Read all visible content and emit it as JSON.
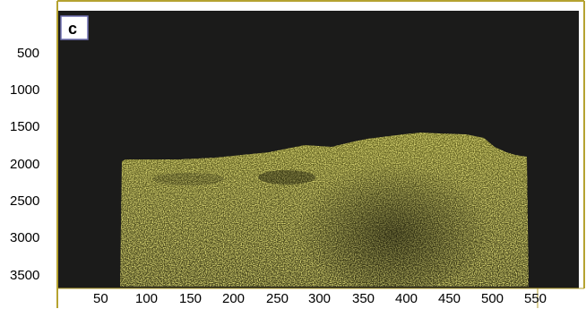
{
  "figure": {
    "panel_label": "c",
    "y_ticks": [
      "500",
      "1000",
      "1500",
      "2000",
      "2500",
      "3000",
      "3500"
    ],
    "x_ticks": [
      "50",
      "100",
      "150",
      "200",
      "250",
      "300",
      "350",
      "400",
      "450",
      "500",
      "550"
    ],
    "colors": {
      "background": "#1b1b1a",
      "border": "#b5a230",
      "speckle": "#c9c233",
      "speckle_dark": "#3a3a16"
    }
  }
}
